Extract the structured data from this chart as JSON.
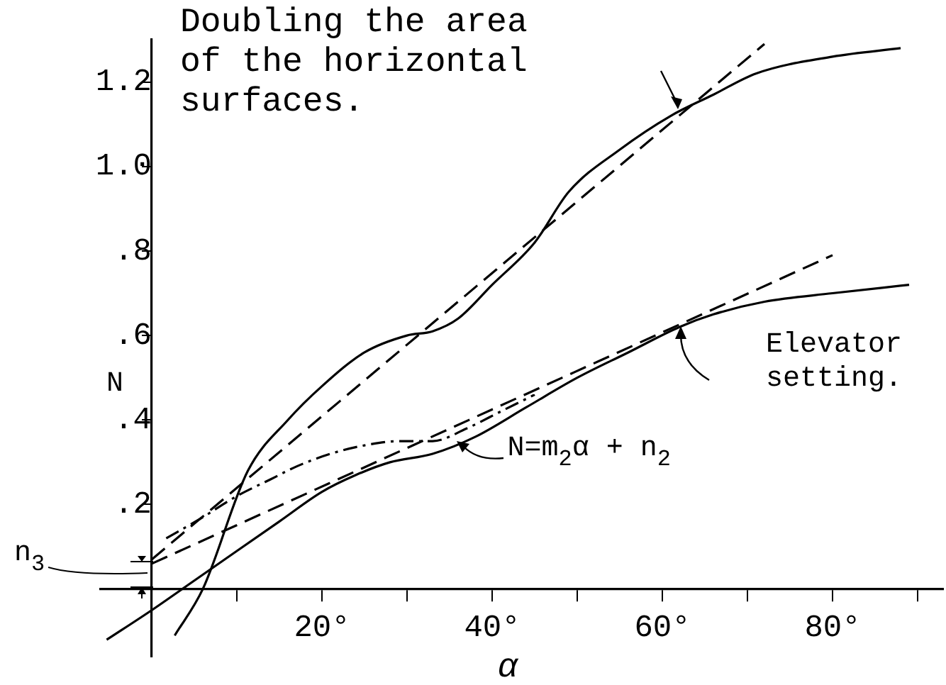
{
  "chart_data": {
    "type": "line",
    "xlabel": "α",
    "ylabel": "N",
    "xlim": [
      -6,
      93
    ],
    "ylim": [
      -0.16,
      1.3
    ],
    "xticks": [
      {
        "value": 10,
        "label": null
      },
      {
        "value": 20,
        "label": "20°"
      },
      {
        "value": 30,
        "label": null
      },
      {
        "value": 40,
        "label": "40°"
      },
      {
        "value": 50,
        "label": null
      },
      {
        "value": 60,
        "label": "60°"
      },
      {
        "value": 70,
        "label": null
      },
      {
        "value": 80,
        "label": "80°"
      },
      {
        "value": 90,
        "label": null
      }
    ],
    "yticks": [
      {
        "value": 0.2,
        "label": ".2"
      },
      {
        "value": 0.4,
        "label": ".4"
      },
      {
        "value": 0.6,
        "label": ".6"
      },
      {
        "value": 0.8,
        "label": ".8"
      },
      {
        "value": 1.0,
        "label": "1.0"
      },
      {
        "value": 1.2,
        "label": "1.2"
      }
    ],
    "grid": false,
    "legend": false,
    "marker": "none",
    "series": [
      {
        "color": "#000000",
        "line_style": "solid",
        "x": [
          2.7,
          6,
          11.3,
          16,
          20,
          25,
          30,
          33,
          36,
          40,
          45,
          49,
          55,
          61,
          66,
          71,
          80,
          88
        ],
        "values": [
          -0.11,
          0,
          0.28,
          0.4,
          0.48,
          0.56,
          0.6,
          0.61,
          0.64,
          0.72,
          0.82,
          0.94,
          1.04,
          1.12,
          1.17,
          1.22,
          1.26,
          1.28
        ]
      },
      {
        "color": "#000000",
        "line_style": "dashed",
        "x": [
          0,
          72
        ],
        "values": [
          0.07,
          1.29
        ]
      },
      {
        "color": "#000000",
        "line_style": "solid",
        "x": [
          -5.3,
          0,
          5,
          10,
          15,
          20,
          24,
          28,
          33,
          38,
          44,
          50,
          56,
          62,
          66,
          72,
          80,
          89
        ],
        "values": [
          -0.12,
          -0.05,
          0.02,
          0.09,
          0.16,
          0.23,
          0.27,
          0.3,
          0.32,
          0.36,
          0.43,
          0.5,
          0.56,
          0.62,
          0.65,
          0.68,
          0.7,
          0.72
        ]
      },
      {
        "color": "#000000",
        "line_style": "dotted",
        "x": [
          1.7,
          6,
          10,
          14,
          17,
          21,
          25,
          29,
          33,
          37,
          41,
          45
        ],
        "values": [
          0.12,
          0.17,
          0.22,
          0.26,
          0.29,
          0.32,
          0.34,
          0.35,
          0.35,
          0.38,
          0.42,
          0.46
        ]
      },
      {
        "color": "#000000",
        "line_style": "dashed",
        "x": [
          0,
          80
        ],
        "values": [
          0.06,
          0.79
        ]
      }
    ],
    "annotations": [
      "Doubling the area of the horizontal surfaces.",
      "Elevator setting.",
      {
        "text": "N=m$_{2}$α + n$_{2}$",
        "x": 35.8,
        "y": 0.35
      },
      "n$_{3}$"
    ]
  }
}
